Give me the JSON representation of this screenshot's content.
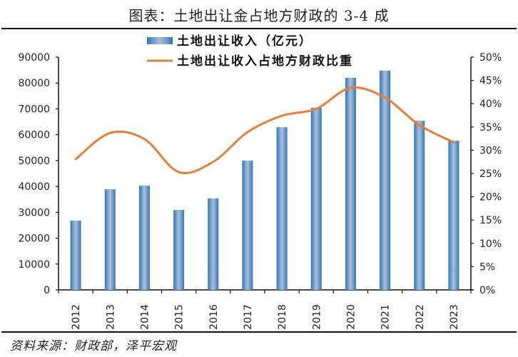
{
  "header": {
    "title": "图表：土地出让金占地方财政的 3-4 成"
  },
  "footer": {
    "source": "资料来源：财政部，泽平宏观"
  },
  "colors": {
    "bar_edge": "#2e75b6",
    "bar_center": "#a9bfd9",
    "line": "#ed7d31",
    "axis": "#111111"
  },
  "chart_data": {
    "type": "bar+line",
    "title": "图表：土地出让金占地方财政的 3-4 成",
    "categories": [
      "2012",
      "2013",
      "2014",
      "2015",
      "2016",
      "2017",
      "2018",
      "2019",
      "2020",
      "2021",
      "2022",
      "2023"
    ],
    "series": [
      {
        "name": "土地出让收入（亿元）",
        "type": "bar",
        "axis": "left",
        "values": [
          26800,
          38900,
          40300,
          30900,
          35400,
          50000,
          62900,
          70400,
          82000,
          84800,
          65400,
          57700
        ]
      },
      {
        "name": "土地出让收入占地方财政比重",
        "type": "line",
        "axis": "right",
        "smooth": true,
        "values": [
          28.1,
          33.7,
          32.4,
          25.3,
          27.5,
          33.9,
          37.4,
          38.9,
          43.4,
          41.3,
          35.4,
          31.7
        ]
      }
    ],
    "y_left": {
      "min": 0,
      "max": 90000,
      "step": 10000,
      "ticks": [
        "0",
        "10000",
        "20000",
        "30000",
        "40000",
        "50000",
        "60000",
        "70000",
        "80000",
        "90000"
      ]
    },
    "y_right": {
      "min": 0,
      "max": 50,
      "step": 5,
      "ticks": [
        "0%",
        "5%",
        "10%",
        "15%",
        "20%",
        "25%",
        "30%",
        "35%",
        "40%",
        "45%",
        "50%"
      ]
    },
    "xlabel": "",
    "ylabel": "",
    "grid": false,
    "legend_position": "top"
  }
}
